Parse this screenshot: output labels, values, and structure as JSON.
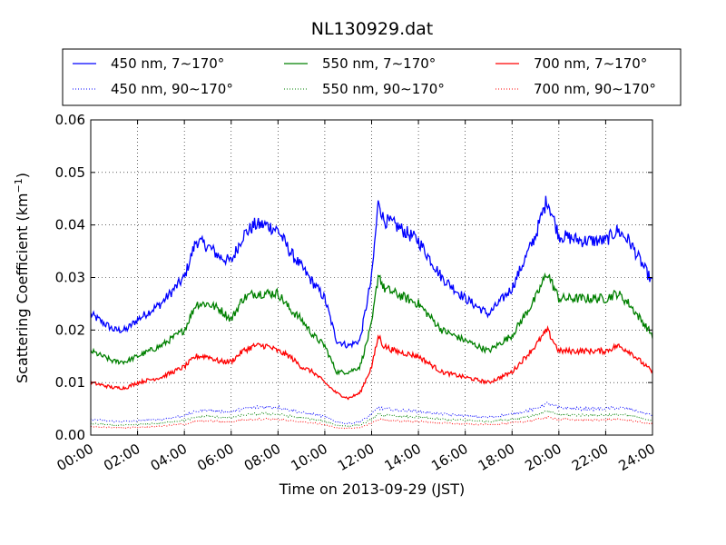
{
  "chart_data": {
    "type": "line",
    "title": "NL130929.dat",
    "xlabel": "Time on 2013-09-29 (JST)",
    "ylabel": "Scattering Coefficient (km",
    "ylabel_sup": "−1",
    "ylabel_close": ")",
    "xlim": [
      0,
      24
    ],
    "ylim": [
      0,
      0.06
    ],
    "grid": true,
    "legend_position": "top",
    "x_ticks": [
      0,
      2,
      4,
      6,
      8,
      10,
      12,
      14,
      16,
      18,
      20,
      22,
      24
    ],
    "x_tick_labels": [
      "00:00",
      "02:00",
      "04:00",
      "06:00",
      "08:00",
      "10:00",
      "12:00",
      "14:00",
      "16:00",
      "18:00",
      "20:00",
      "22:00",
      "24:00"
    ],
    "y_ticks": [
      0,
      0.01,
      0.02,
      0.03,
      0.04,
      0.05,
      0.06
    ],
    "y_tick_labels": [
      "0.00",
      "0.01",
      "0.02",
      "0.03",
      "0.04",
      "0.05",
      "0.06"
    ],
    "x": [
      0,
      1,
      1.5,
      2,
      3,
      4,
      4.5,
      5,
      5.5,
      6,
      6.5,
      7,
      7.5,
      8,
      8.5,
      9,
      9.5,
      10,
      10.5,
      11,
      11.5,
      12,
      12.3,
      12.5,
      13,
      14,
      15,
      16,
      17,
      18,
      19,
      19.5,
      20,
      21,
      22,
      22.5,
      23,
      24
    ],
    "series": [
      {
        "name": "450 nm, 7∼170°",
        "color": "#0000ff",
        "style": "solid",
        "values": [
          0.023,
          0.02,
          0.02,
          0.022,
          0.025,
          0.03,
          0.037,
          0.036,
          0.034,
          0.033,
          0.038,
          0.04,
          0.04,
          0.039,
          0.035,
          0.032,
          0.029,
          0.026,
          0.018,
          0.017,
          0.018,
          0.03,
          0.045,
          0.041,
          0.04,
          0.037,
          0.03,
          0.026,
          0.023,
          0.028,
          0.038,
          0.045,
          0.038,
          0.037,
          0.037,
          0.039,
          0.037,
          0.029
        ]
      },
      {
        "name": "550 nm, 7∼170°",
        "color": "#008000",
        "style": "solid",
        "values": [
          0.016,
          0.014,
          0.014,
          0.015,
          0.017,
          0.02,
          0.025,
          0.025,
          0.024,
          0.022,
          0.026,
          0.027,
          0.027,
          0.027,
          0.024,
          0.022,
          0.019,
          0.017,
          0.012,
          0.012,
          0.013,
          0.021,
          0.031,
          0.028,
          0.027,
          0.025,
          0.02,
          0.018,
          0.016,
          0.019,
          0.026,
          0.031,
          0.026,
          0.026,
          0.026,
          0.027,
          0.025,
          0.019
        ]
      },
      {
        "name": "700 nm, 7∼170°",
        "color": "#ff0000",
        "style": "solid",
        "values": [
          0.01,
          0.009,
          0.009,
          0.01,
          0.011,
          0.013,
          0.015,
          0.015,
          0.014,
          0.014,
          0.016,
          0.017,
          0.017,
          0.016,
          0.015,
          0.013,
          0.012,
          0.01,
          0.008,
          0.007,
          0.008,
          0.013,
          0.019,
          0.017,
          0.016,
          0.015,
          0.012,
          0.011,
          0.01,
          0.012,
          0.017,
          0.02,
          0.016,
          0.016,
          0.016,
          0.017,
          0.016,
          0.012
        ]
      },
      {
        "name": "450 nm, 90∼170°",
        "color": "#0000ff",
        "style": "dotted",
        "values": [
          0.003,
          0.0026,
          0.0026,
          0.0027,
          0.003,
          0.0037,
          0.0045,
          0.0048,
          0.0045,
          0.0044,
          0.005,
          0.0053,
          0.0054,
          0.0053,
          0.0048,
          0.0043,
          0.004,
          0.0035,
          0.0025,
          0.0022,
          0.0025,
          0.004,
          0.0052,
          0.005,
          0.0048,
          0.0045,
          0.004,
          0.0037,
          0.0034,
          0.004,
          0.005,
          0.006,
          0.0052,
          0.005,
          0.005,
          0.0052,
          0.005,
          0.0037
        ]
      },
      {
        "name": "550 nm, 90∼170°",
        "color": "#008000",
        "style": "dotted",
        "values": [
          0.0022,
          0.0019,
          0.0019,
          0.002,
          0.0023,
          0.0028,
          0.0034,
          0.0036,
          0.0034,
          0.0033,
          0.0038,
          0.004,
          0.0041,
          0.004,
          0.0036,
          0.0033,
          0.003,
          0.0026,
          0.0019,
          0.0017,
          0.0019,
          0.003,
          0.004,
          0.0038,
          0.0036,
          0.0034,
          0.003,
          0.0028,
          0.0026,
          0.003,
          0.0038,
          0.0045,
          0.0039,
          0.0038,
          0.0038,
          0.0039,
          0.0037,
          0.0028
        ]
      },
      {
        "name": "700 nm, 90∼170°",
        "color": "#ff0000",
        "style": "dotted",
        "values": [
          0.0016,
          0.0014,
          0.0014,
          0.0015,
          0.0017,
          0.0021,
          0.0026,
          0.0027,
          0.0026,
          0.0025,
          0.0029,
          0.003,
          0.0031,
          0.003,
          0.0027,
          0.0025,
          0.0023,
          0.002,
          0.0014,
          0.0013,
          0.0014,
          0.0023,
          0.003,
          0.0029,
          0.0027,
          0.0026,
          0.0023,
          0.0021,
          0.002,
          0.0023,
          0.0029,
          0.0034,
          0.003,
          0.0029,
          0.0029,
          0.003,
          0.0028,
          0.0021
        ]
      }
    ]
  }
}
